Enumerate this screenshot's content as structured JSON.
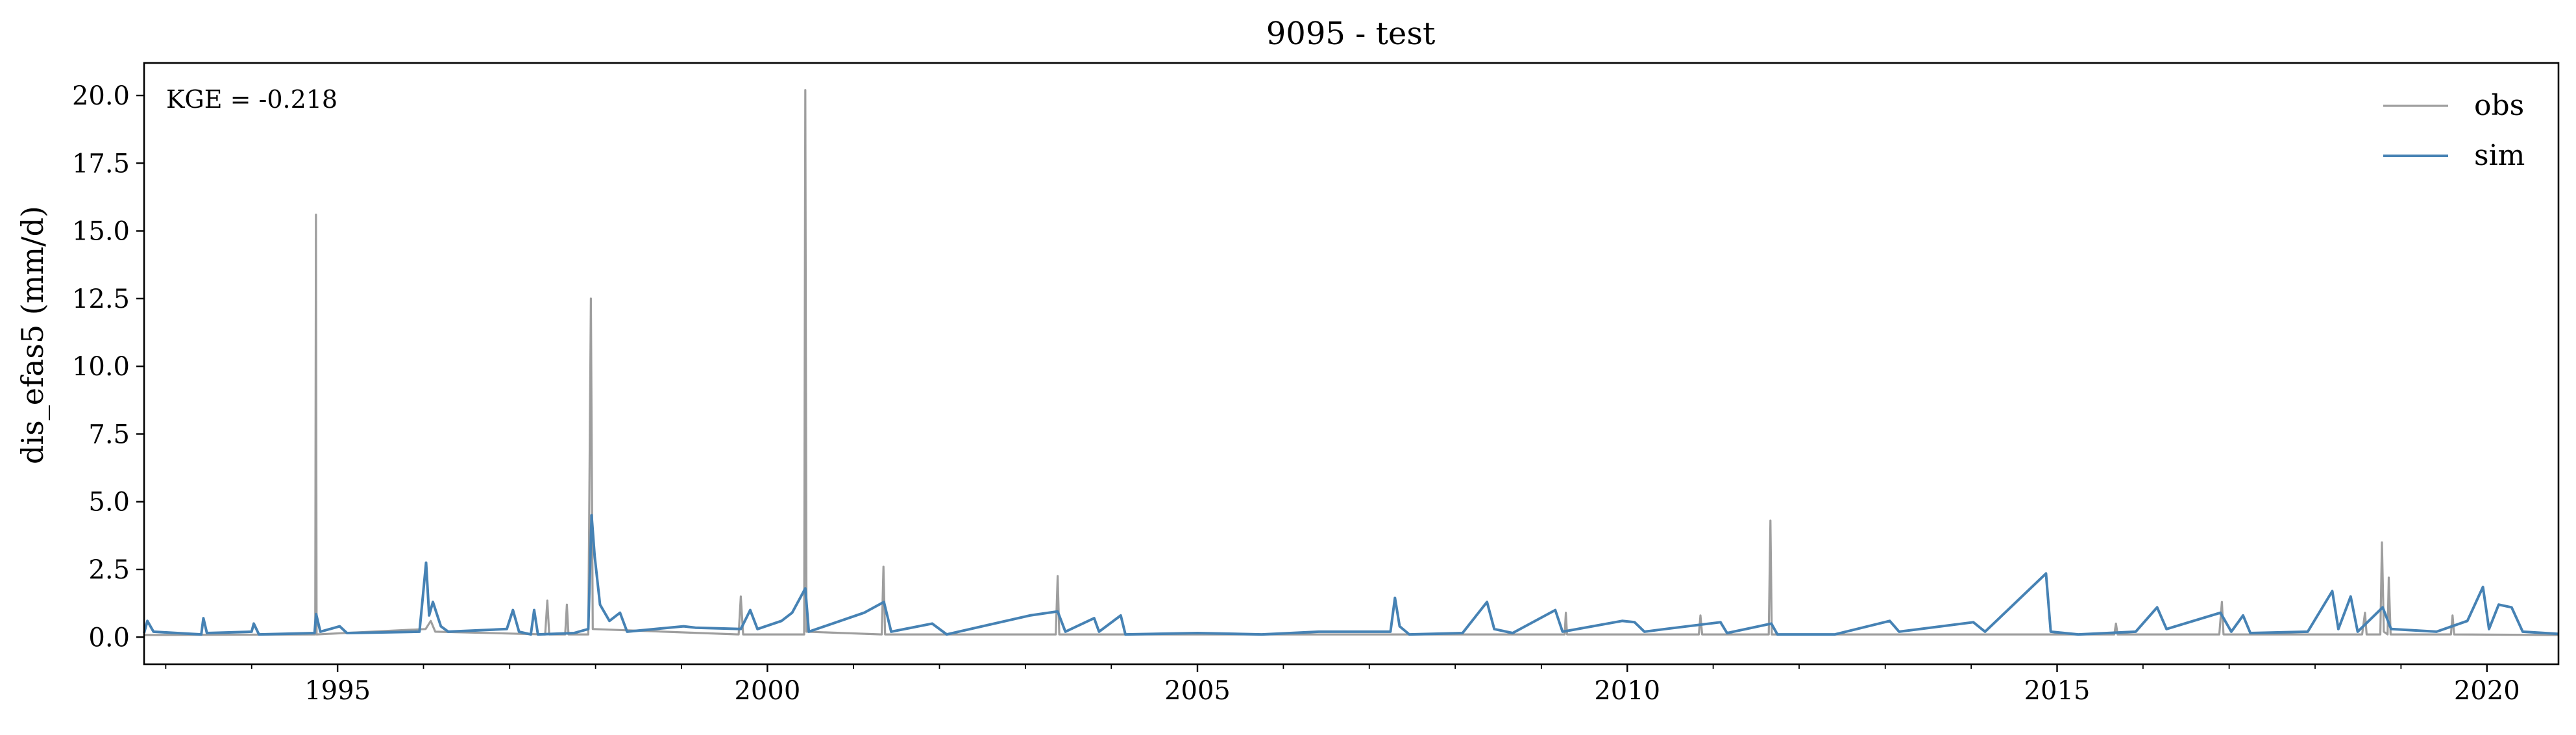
{
  "chart_data": {
    "type": "line",
    "title": "9095 - test",
    "xlabel": "",
    "ylabel": "dis_efas5 (mm/d)",
    "xlim": [
      "1992-10-01",
      "2020-10-31"
    ],
    "ylim": [
      -1.0,
      21.2
    ],
    "y_ticks": [
      0.0,
      2.5,
      5.0,
      7.5,
      10.0,
      12.5,
      15.0,
      17.5,
      20.0
    ],
    "y_tick_labels": [
      "0.0",
      "2.5",
      "5.0",
      "7.5",
      "10.0",
      "12.5",
      "15.0",
      "17.5",
      "20.0"
    ],
    "x_ticks": [
      "1995-01-01",
      "2000-01-01",
      "2005-01-01",
      "2010-01-01",
      "2015-01-01",
      "2020-01-01"
    ],
    "x_tick_labels": [
      "1995",
      "2000",
      "2005",
      "2010",
      "2015",
      "2020"
    ],
    "grid": false,
    "legend_position": "top-right",
    "annotation": "KGE = -0.218",
    "series": [
      {
        "name": "obs",
        "color": "#9e9e9e",
        "points": [
          [
            "1992-10-01",
            0.08
          ],
          [
            "1994-09-28",
            0.1
          ],
          [
            "1994-10-01",
            15.6
          ],
          [
            "1994-10-04",
            0.1
          ],
          [
            "1996-01-10",
            0.3
          ],
          [
            "1996-02-01",
            0.6
          ],
          [
            "1996-02-20",
            0.2
          ],
          [
            "1997-06-01",
            0.1
          ],
          [
            "1997-06-10",
            1.35
          ],
          [
            "1997-06-18",
            0.1
          ],
          [
            "1997-08-25",
            0.1
          ],
          [
            "1997-09-01",
            1.2
          ],
          [
            "1997-09-08",
            0.1
          ],
          [
            "1997-12-01",
            0.1
          ],
          [
            "1997-12-12",
            12.5
          ],
          [
            "1997-12-20",
            0.3
          ],
          [
            "1999-09-01",
            0.1
          ],
          [
            "1999-09-10",
            1.5
          ],
          [
            "1999-09-20",
            0.1
          ],
          [
            "2000-06-05",
            0.1
          ],
          [
            "2000-06-10",
            20.2
          ],
          [
            "2000-06-15",
            0.2
          ],
          [
            "2001-05-01",
            0.1
          ],
          [
            "2001-05-08",
            2.6
          ],
          [
            "2001-05-15",
            0.1
          ],
          [
            "2003-05-10",
            0.1
          ],
          [
            "2003-05-18",
            2.25
          ],
          [
            "2003-05-25",
            0.1
          ],
          [
            "2009-04-10",
            0.1
          ],
          [
            "2009-04-15",
            0.9
          ],
          [
            "2009-04-20",
            0.1
          ],
          [
            "2010-11-01",
            0.1
          ],
          [
            "2010-11-08",
            0.8
          ],
          [
            "2010-11-15",
            0.1
          ],
          [
            "2011-08-25",
            0.1
          ],
          [
            "2011-09-01",
            4.3
          ],
          [
            "2011-09-07",
            0.1
          ],
          [
            "2015-09-01",
            0.1
          ],
          [
            "2015-09-08",
            0.5
          ],
          [
            "2015-09-15",
            0.1
          ],
          [
            "2016-11-20",
            0.1
          ],
          [
            "2016-12-01",
            1.3
          ],
          [
            "2016-12-08",
            0.1
          ],
          [
            "2018-07-20",
            0.1
          ],
          [
            "2018-08-01",
            0.9
          ],
          [
            "2018-08-08",
            0.1
          ],
          [
            "2018-10-05",
            0.1
          ],
          [
            "2018-10-12",
            3.5
          ],
          [
            "2018-10-20",
            0.2
          ],
          [
            "2018-11-05",
            0.1
          ],
          [
            "2018-11-10",
            2.2
          ],
          [
            "2018-11-18",
            0.1
          ],
          [
            "2019-08-01",
            0.1
          ],
          [
            "2019-08-08",
            0.8
          ],
          [
            "2019-08-15",
            0.1
          ],
          [
            "2020-10-31",
            0.08
          ]
        ]
      },
      {
        "name": "sim",
        "color": "#4682b4",
        "points": [
          [
            "1992-10-01",
            0.15
          ],
          [
            "1992-10-15",
            0.6
          ],
          [
            "1992-11-10",
            0.2
          ],
          [
            "1993-06-01",
            0.1
          ],
          [
            "1993-06-10",
            0.7
          ],
          [
            "1993-06-25",
            0.15
          ],
          [
            "1994-01-01",
            0.2
          ],
          [
            "1994-01-10",
            0.5
          ],
          [
            "1994-02-01",
            0.1
          ],
          [
            "1994-09-25",
            0.15
          ],
          [
            "1994-10-02",
            0.85
          ],
          [
            "1994-10-20",
            0.2
          ],
          [
            "1995-01-10",
            0.4
          ],
          [
            "1995-02-10",
            0.15
          ],
          [
            "1995-12-15",
            0.2
          ],
          [
            "1996-01-12",
            2.75
          ],
          [
            "1996-01-25",
            0.8
          ],
          [
            "1996-02-10",
            1.3
          ],
          [
            "1996-03-15",
            0.4
          ],
          [
            "1996-04-15",
            0.2
          ],
          [
            "1996-12-20",
            0.3
          ],
          [
            "1997-01-15",
            1.0
          ],
          [
            "1997-02-10",
            0.2
          ],
          [
            "1997-04-01",
            0.1
          ],
          [
            "1997-04-15",
            1.0
          ],
          [
            "1997-05-01",
            0.1
          ],
          [
            "1997-10-01",
            0.15
          ],
          [
            "1997-12-01",
            0.3
          ],
          [
            "1997-12-15",
            4.5
          ],
          [
            "1997-12-28",
            3.0
          ],
          [
            "1998-01-20",
            1.2
          ],
          [
            "1998-03-01",
            0.6
          ],
          [
            "1998-04-15",
            0.9
          ],
          [
            "1998-05-15",
            0.2
          ],
          [
            "1999-01-10",
            0.4
          ],
          [
            "1999-03-01",
            0.35
          ],
          [
            "1999-09-10",
            0.3
          ],
          [
            "1999-10-20",
            1.0
          ],
          [
            "1999-11-20",
            0.3
          ],
          [
            "2000-03-01",
            0.6
          ],
          [
            "2000-04-15",
            0.9
          ],
          [
            "2000-06-10",
            1.8
          ],
          [
            "2000-06-25",
            0.2
          ],
          [
            "2001-02-15",
            0.9
          ],
          [
            "2001-05-10",
            1.3
          ],
          [
            "2001-06-10",
            0.2
          ],
          [
            "2001-12-01",
            0.5
          ],
          [
            "2002-02-01",
            0.1
          ],
          [
            "2003-01-20",
            0.8
          ],
          [
            "2003-05-18",
            0.95
          ],
          [
            "2003-06-20",
            0.2
          ],
          [
            "2003-10-20",
            0.7
          ],
          [
            "2003-11-10",
            0.2
          ],
          [
            "2004-02-10",
            0.8
          ],
          [
            "2004-03-01",
            0.1
          ],
          [
            "2005-01-01",
            0.15
          ],
          [
            "2005-10-01",
            0.1
          ],
          [
            "2006-06-01",
            0.2
          ],
          [
            "2007-04-01",
            0.2
          ],
          [
            "2007-04-20",
            1.45
          ],
          [
            "2007-05-10",
            0.4
          ],
          [
            "2007-06-20",
            0.1
          ],
          [
            "2008-02-01",
            0.15
          ],
          [
            "2008-05-15",
            1.3
          ],
          [
            "2008-06-15",
            0.3
          ],
          [
            "2008-09-01",
            0.15
          ],
          [
            "2009-03-01",
            1.0
          ],
          [
            "2009-04-01",
            0.2
          ],
          [
            "2009-12-10",
            0.6
          ],
          [
            "2010-02-01",
            0.55
          ],
          [
            "2010-03-15",
            0.2
          ],
          [
            "2010-06-10",
            0.3
          ],
          [
            "2011-02-01",
            0.55
          ],
          [
            "2011-03-01",
            0.15
          ],
          [
            "2011-09-05",
            0.5
          ],
          [
            "2011-10-01",
            0.1
          ],
          [
            "2012-06-01",
            0.1
          ],
          [
            "2013-01-20",
            0.6
          ],
          [
            "2013-03-01",
            0.2
          ],
          [
            "2014-01-10",
            0.55
          ],
          [
            "2014-03-01",
            0.2
          ],
          [
            "2014-11-15",
            2.35
          ],
          [
            "2014-12-05",
            0.2
          ],
          [
            "2015-04-01",
            0.1
          ],
          [
            "2015-12-01",
            0.2
          ],
          [
            "2016-03-01",
            1.1
          ],
          [
            "2016-04-10",
            0.3
          ],
          [
            "2016-11-25",
            0.9
          ],
          [
            "2017-01-10",
            0.2
          ],
          [
            "2017-03-01",
            0.8
          ],
          [
            "2017-04-01",
            0.15
          ],
          [
            "2017-12-01",
            0.2
          ],
          [
            "2018-03-15",
            1.7
          ],
          [
            "2018-04-10",
            0.3
          ],
          [
            "2018-06-01",
            1.5
          ],
          [
            "2018-07-01",
            0.2
          ],
          [
            "2018-10-15",
            1.1
          ],
          [
            "2018-11-20",
            0.3
          ],
          [
            "2019-06-01",
            0.2
          ],
          [
            "2019-10-10",
            0.6
          ],
          [
            "2019-12-15",
            1.85
          ],
          [
            "2020-01-10",
            0.3
          ],
          [
            "2020-02-20",
            1.2
          ],
          [
            "2020-04-15",
            1.1
          ],
          [
            "2020-06-01",
            0.2
          ],
          [
            "2020-10-31",
            0.12
          ]
        ]
      }
    ]
  }
}
